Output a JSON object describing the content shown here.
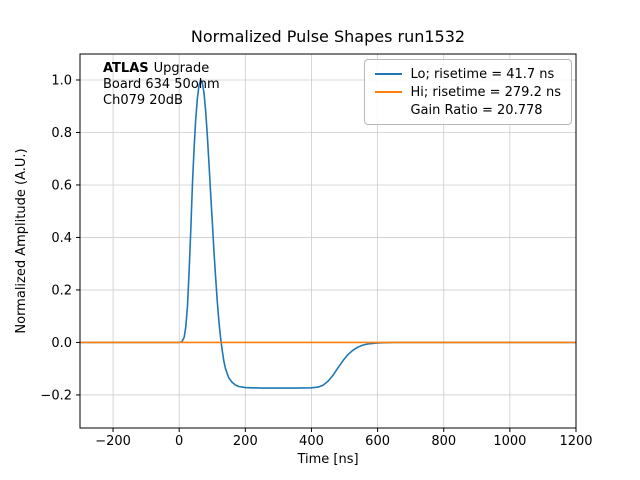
{
  "chart_data": {
    "type": "line",
    "title": "Normalized Pulse Shapes run1532",
    "xlabel": "Time [ns]",
    "ylabel": "Normalized Amplitude (A.U.)",
    "xlim": [
      -300,
      1200
    ],
    "ylim": [
      -0.326,
      1.099
    ],
    "xticks": [
      -200,
      0,
      200,
      400,
      600,
      800,
      1000,
      1200
    ],
    "xtick_labels": [
      "−200",
      "0",
      "200",
      "400",
      "600",
      "800",
      "1000",
      "1200"
    ],
    "yticks": [
      -0.2,
      0.0,
      0.2,
      0.4,
      0.6,
      0.8,
      1.0
    ],
    "ytick_labels": [
      "−0.2",
      "0.0",
      "0.2",
      "0.4",
      "0.6",
      "0.8",
      "1.0"
    ],
    "grid": true,
    "grid_color": "#cccccc",
    "legend_position": "upper right",
    "annotation": {
      "bold": "ATLAS",
      "line1_rest": "Upgrade",
      "line2": "Board 634 50ohm",
      "line3": "Ch079 20dB"
    },
    "legend": {
      "items": [
        {
          "label": "Lo; risetime = 41.7 ns",
          "color": "#1f77b4"
        },
        {
          "label": "Hi; risetime = 279.2 ns",
          "color": "#ff7f0e"
        },
        {
          "label": "Gain Ratio = 20.778",
          "color": "none"
        }
      ]
    },
    "series": [
      {
        "name": "Lo; risetime = 41.7 ns",
        "color": "#1f77b4",
        "points": [
          [
            -300,
            0
          ],
          [
            -100,
            0
          ],
          [
            -20,
            0
          ],
          [
            0,
            0
          ],
          [
            8,
            0.002
          ],
          [
            15,
            0.02
          ],
          [
            20,
            0.06
          ],
          [
            25,
            0.14
          ],
          [
            30,
            0.27
          ],
          [
            35,
            0.43
          ],
          [
            40,
            0.6
          ],
          [
            45,
            0.74
          ],
          [
            50,
            0.85
          ],
          [
            55,
            0.93
          ],
          [
            60,
            0.98
          ],
          [
            65,
            1.0
          ],
          [
            70,
            0.99
          ],
          [
            75,
            0.95
          ],
          [
            80,
            0.88
          ],
          [
            85,
            0.79
          ],
          [
            90,
            0.68
          ],
          [
            95,
            0.57
          ],
          [
            100,
            0.46
          ],
          [
            105,
            0.35
          ],
          [
            110,
            0.25
          ],
          [
            115,
            0.16
          ],
          [
            120,
            0.08
          ],
          [
            125,
            0.02
          ],
          [
            130,
            -0.03
          ],
          [
            135,
            -0.07
          ],
          [
            140,
            -0.1
          ],
          [
            150,
            -0.135
          ],
          [
            160,
            -0.152
          ],
          [
            170,
            -0.162
          ],
          [
            180,
            -0.168
          ],
          [
            200,
            -0.172
          ],
          [
            250,
            -0.174
          ],
          [
            300,
            -0.174
          ],
          [
            350,
            -0.174
          ],
          [
            400,
            -0.173
          ],
          [
            420,
            -0.17
          ],
          [
            435,
            -0.163
          ],
          [
            450,
            -0.148
          ],
          [
            465,
            -0.125
          ],
          [
            480,
            -0.097
          ],
          [
            495,
            -0.07
          ],
          [
            510,
            -0.047
          ],
          [
            525,
            -0.03
          ],
          [
            540,
            -0.018
          ],
          [
            555,
            -0.01
          ],
          [
            570,
            -0.006
          ],
          [
            600,
            -0.002
          ],
          [
            650,
            0
          ],
          [
            800,
            0
          ],
          [
            1000,
            0
          ],
          [
            1200,
            0
          ]
        ]
      },
      {
        "name": "Hi; risetime = 279.2 ns",
        "color": "#ff7f0e",
        "points": [
          [
            -300,
            0
          ],
          [
            -100,
            0
          ],
          [
            0,
            0
          ],
          [
            200,
            0
          ],
          [
            400,
            0
          ],
          [
            600,
            0
          ],
          [
            800,
            0
          ],
          [
            1000,
            0
          ],
          [
            1200,
            0
          ]
        ]
      }
    ]
  }
}
